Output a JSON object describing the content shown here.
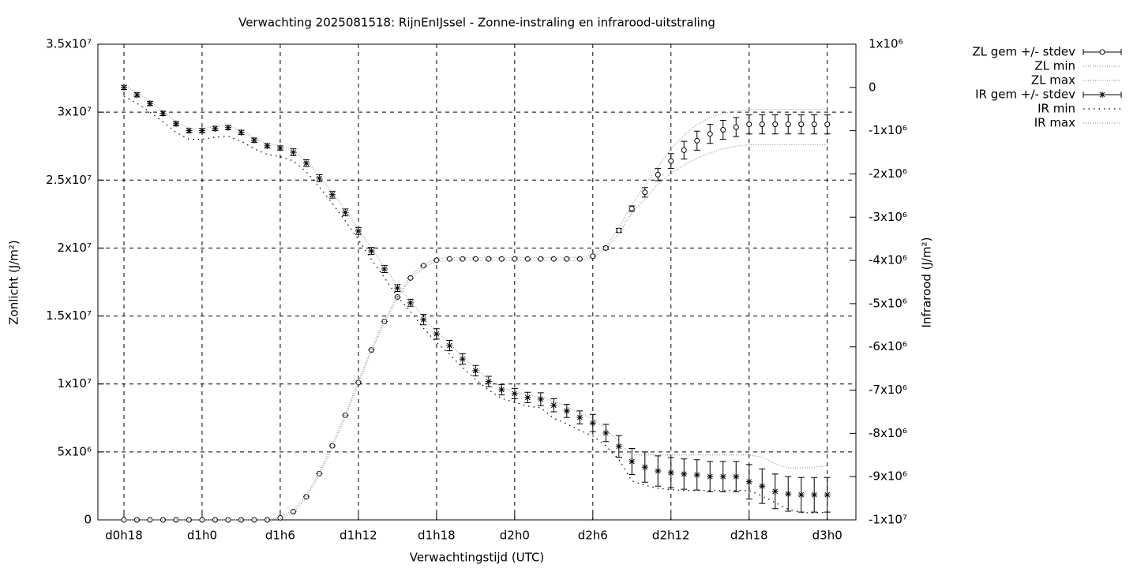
{
  "chart_data": {
    "type": "errorbar-line",
    "title": "Verwachting 2025081518: RijnEnIJssel - Zonne-instraling en infrarood-uitstraling",
    "xlabel": "Verwachtingstijd (UTC)",
    "ylabel": "Zonlicht (J/m²)",
    "y2label": "Infrarood (J/m²)",
    "grid": true,
    "legend": "outside-top-right",
    "xlim": [
      16,
      74.2
    ],
    "xticks": [
      {
        "value": 18,
        "label": "d0h18"
      },
      {
        "value": 24,
        "label": "d1h0"
      },
      {
        "value": 30,
        "label": "d1h6"
      },
      {
        "value": 36,
        "label": "d1h12"
      },
      {
        "value": 42,
        "label": "d1h18"
      },
      {
        "value": 48,
        "label": "d2h0"
      },
      {
        "value": 54,
        "label": "d2h6"
      },
      {
        "value": 60,
        "label": "d2h12"
      },
      {
        "value": 66,
        "label": "d2h18"
      },
      {
        "value": 72,
        "label": "d3h0"
      }
    ],
    "ylim": [
      0,
      35000000
    ],
    "yticks": [
      0,
      {
        "value": 5000000,
        "label": "5x10⁶"
      },
      {
        "value": 10000000,
        "label": "1x10⁷"
      },
      {
        "value": 15000000,
        "label": "1.5x10⁷"
      },
      {
        "value": 20000000,
        "label": "2x10⁷"
      },
      {
        "value": 25000000,
        "label": "2.5x10⁷"
      },
      {
        "value": 30000000,
        "label": "3x10⁷"
      },
      {
        "value": 35000000,
        "label": "3.5x10⁷"
      }
    ],
    "y2lim": [
      -10000000,
      1000000
    ],
    "y2ticks": [
      {
        "value": 1000000,
        "label": "1x10⁶"
      },
      0,
      {
        "value": -1000000,
        "label": "-1x10⁶"
      },
      {
        "value": -2000000,
        "label": "-2x10⁶"
      },
      {
        "value": -3000000,
        "label": "-3x10⁶"
      },
      {
        "value": -4000000,
        "label": "-4x10⁶"
      },
      {
        "value": -5000000,
        "label": "-5x10⁶"
      },
      {
        "value": -6000000,
        "label": "-6x10⁶"
      },
      {
        "value": -7000000,
        "label": "-7x10⁶"
      },
      {
        "value": -8000000,
        "label": "-8x10⁶"
      },
      {
        "value": -9000000,
        "label": "-9x10⁶"
      },
      {
        "value": -10000000,
        "label": "-1x10⁷"
      }
    ],
    "x": [
      18,
      19,
      20,
      21,
      22,
      23,
      24,
      25,
      26,
      27,
      28,
      29,
      30,
      31,
      32,
      33,
      34,
      35,
      36,
      37,
      38,
      39,
      40,
      41,
      42,
      43,
      44,
      45,
      46,
      47,
      48,
      49,
      50,
      51,
      52,
      53,
      54,
      55,
      56,
      57,
      58,
      59,
      60,
      61,
      62,
      63,
      64,
      65,
      66,
      67,
      68,
      69,
      70,
      71,
      72
    ],
    "series": [
      {
        "name": "ZL gem +/- stdev",
        "axis": "y",
        "color": "#000000",
        "marker": "circle",
        "line": "none",
        "values": [
          0,
          0,
          0,
          0,
          0,
          0,
          0,
          0,
          0,
          0,
          0,
          0,
          150000.0,
          600000.0,
          1700000.0,
          3400000.0,
          5450000.0,
          7700000.0,
          10100000.0,
          12500000.0,
          14600000.0,
          16400000.0,
          17800000.0,
          18700000.0,
          19100000.0,
          19200000.0,
          19200000.0,
          19200000.0,
          19200000.0,
          19200000.0,
          19200000.0,
          19200000.0,
          19200000.0,
          19200000.0,
          19200000.0,
          19200000.0,
          19400000.0,
          20000000.0,
          21300000.0,
          22900000.0,
          24100000.0,
          25400000.0,
          26400000.0,
          27200000.0,
          27900000.0,
          28400000.0,
          28700000.0,
          28900000.0,
          29100000.0,
          29100000.0,
          29100000.0,
          29100000.0,
          29100000.0,
          29100000.0,
          29100000.0
        ],
        "errors": [
          0,
          0,
          0,
          0,
          0,
          0,
          0,
          0,
          0,
          0,
          0,
          0,
          0,
          0,
          0,
          0,
          0,
          0,
          0,
          0,
          0,
          0,
          0,
          0,
          0,
          0,
          0,
          0,
          0,
          0,
          0,
          0,
          0,
          0,
          0,
          0,
          0,
          100000.0,
          150000.0,
          200000.0,
          350000.0,
          450000.0,
          550000.0,
          650000.0,
          700000.0,
          700000.0,
          700000.0,
          700000.0,
          700000.0,
          700000.0,
          700000.0,
          700000.0,
          700000.0,
          700000.0,
          700000.0
        ]
      },
      {
        "name": "ZL min",
        "axis": "y",
        "color": "#999999",
        "marker": "none",
        "line": "dotted",
        "values": [
          0,
          0,
          0,
          0,
          0,
          0,
          0,
          0,
          0,
          0,
          0,
          0,
          100000.0,
          500000.0,
          1600000.0,
          3300000.0,
          5300000.0,
          7600000.0,
          10000000.0,
          12400000.0,
          14500000.0,
          16300000.0,
          17700000.0,
          18600000.0,
          19000000.0,
          19100000.0,
          19100000.0,
          19100000.0,
          19100000.0,
          19100000.0,
          19100000.0,
          19100000.0,
          19100000.0,
          19100000.0,
          19100000.0,
          19100000.0,
          19300000.0,
          19900000.0,
          21100000.0,
          22600000.0,
          23600000.0,
          24700000.0,
          25500000.0,
          26100000.0,
          26600000.0,
          27000000.0,
          27300000.0,
          27500000.0,
          27600000.0,
          27600000.0,
          27600000.0,
          27600000.0,
          27600000.0,
          27600000.0,
          27600000.0
        ]
      },
      {
        "name": "ZL max",
        "axis": "y",
        "color": "#999999",
        "marker": "none",
        "line": "dotted",
        "values": [
          0,
          0,
          0,
          0,
          0,
          0,
          0,
          0,
          0,
          0,
          0,
          0,
          200000.0,
          700000.0,
          1800000.0,
          3500000.0,
          5600000.0,
          7800000.0,
          10200000.0,
          12600000.0,
          14700000.0,
          16500000.0,
          17900000.0,
          18800000.0,
          19200000.0,
          19300000.0,
          19300000.0,
          19300000.0,
          19300000.0,
          19300000.0,
          19300000.0,
          19300000.0,
          19300000.0,
          19300000.0,
          19300000.0,
          19300000.0,
          19500000.0,
          20100000.0,
          21500000.0,
          23200000.0,
          24600000.0,
          26000000.0,
          27300000.0,
          28300000.0,
          29100000.0,
          29600000.0,
          29900000.0,
          30100000.0,
          30200000.0,
          30200000.0,
          30200000.0,
          30200000.0,
          30200000.0,
          30200000.0,
          30200000.0
        ]
      },
      {
        "name": "IR gem +/- stdev",
        "axis": "y2",
        "color": "#000000",
        "marker": "star",
        "line": "none",
        "values": [
          0,
          -170000.0,
          -370000.0,
          -600000.0,
          -840000.0,
          -1000000.0,
          -1000000.0,
          -950000.0,
          -930000.0,
          -1040000.0,
          -1220000.0,
          -1350000.0,
          -1400000.0,
          -1500000.0,
          -1750000.0,
          -2100000.0,
          -2480000.0,
          -2890000.0,
          -3320000.0,
          -3780000.0,
          -4200000.0,
          -4640000.0,
          -4980000.0,
          -5370000.0,
          -5700000.0,
          -5970000.0,
          -6280000.0,
          -6550000.0,
          -6800000.0,
          -6990000.0,
          -7080000.0,
          -7170000.0,
          -7210000.0,
          -7350000.0,
          -7480000.0,
          -7630000.0,
          -7760000.0,
          -7990000.0,
          -8300000.0,
          -8650000.0,
          -8780000.0,
          -8870000.0,
          -8910000.0,
          -8940000.0,
          -8960000.0,
          -9000000.0,
          -9000000.0,
          -9000000.0,
          -9120000.0,
          -9220000.0,
          -9340000.0,
          -9400000.0,
          -9420000.0,
          -9420000.0,
          -9420000.0
        ],
        "errors": [
          50000.0,
          50000.0,
          50000.0,
          50000.0,
          50000.0,
          50000.0,
          50000.0,
          50000.0,
          50000.0,
          50000.0,
          50000.0,
          50000.0,
          50000.0,
          80000.0,
          80000.0,
          80000.0,
          80000.0,
          80000.0,
          80000.0,
          80000.0,
          80000.0,
          80000.0,
          80000.0,
          120000.0,
          120000.0,
          120000.0,
          120000.0,
          120000.0,
          120000.0,
          120000.0,
          120000.0,
          120000.0,
          150000.0,
          150000.0,
          150000.0,
          150000.0,
          200000.0,
          200000.0,
          250000.0,
          300000.0,
          350000.0,
          350000.0,
          350000.0,
          350000.0,
          350000.0,
          350000.0,
          350000.0,
          350000.0,
          400000.0,
          400000.0,
          400000.0,
          400000.0,
          400000.0,
          400000.0,
          400000.0
        ]
      },
      {
        "name": "IR min",
        "axis": "y2",
        "color": "#000000",
        "marker": "none",
        "line": "sparse-dotted",
        "values": [
          -200000.0,
          -370000.0,
          -570000.0,
          -800000.0,
          -1040000.0,
          -1200000.0,
          -1200000.0,
          -1150000.0,
          -1130000.0,
          -1240000.0,
          -1420000.0,
          -1550000.0,
          -1600000.0,
          -1700000.0,
          -1950000.0,
          -2300000.0,
          -2680000.0,
          -3090000.0,
          -3520000.0,
          -3980000.0,
          -4400000.0,
          -4840000.0,
          -5180000.0,
          -5570000.0,
          -5900000.0,
          -6170000.0,
          -6480000.0,
          -6750000.0,
          -7000000.0,
          -7190000.0,
          -7280000.0,
          -7370000.0,
          -7410000.0,
          -7650000.0,
          -7780000.0,
          -7930000.0,
          -8060000.0,
          -8290000.0,
          -8600000.0,
          -9100000.0,
          -9200000.0,
          -9270000.0,
          -9300000.0,
          -9320000.0,
          -9320000.0,
          -9320000.0,
          -9320000.0,
          -9320000.0,
          -9320000.0,
          -9450000.0,
          -9600000.0,
          -9750000.0,
          -9830000.0,
          -9840000.0,
          -9820000.0
        ]
      },
      {
        "name": "IR max",
        "axis": "y2",
        "color": "#999999",
        "marker": "none",
        "line": "dotted",
        "values": [
          50000.0,
          -120000.0,
          -320000.0,
          -550000.0,
          -790000.0,
          -950000.0,
          -950000.0,
          -900000.0,
          -880000.0,
          -990000.0,
          -1170000.0,
          -1300000.0,
          -1350000.0,
          -1450000.0,
          -1700000.0,
          -2050000.0,
          -2430000.0,
          -2840000.0,
          -3270000.0,
          -3730000.0,
          -4150000.0,
          -4590000.0,
          -4930000.0,
          -5320000.0,
          -5650000.0,
          -5920000.0,
          -6230000.0,
          -6500000.0,
          -6750000.0,
          -6940000.0,
          -7030000.0,
          -7120000.0,
          -7160000.0,
          -7250000.0,
          -7380000.0,
          -7530000.0,
          -7660000.0,
          -7890000.0,
          -8200000.0,
          -8500000.0,
          -8500000.0,
          -8500000.0,
          -8500000.0,
          -8500000.0,
          -8500000.0,
          -8500000.0,
          -8500000.0,
          -8500000.0,
          -8500000.0,
          -8550000.0,
          -8700000.0,
          -8800000.0,
          -8800000.0,
          -8780000.0,
          -8750000.0
        ]
      }
    ]
  }
}
